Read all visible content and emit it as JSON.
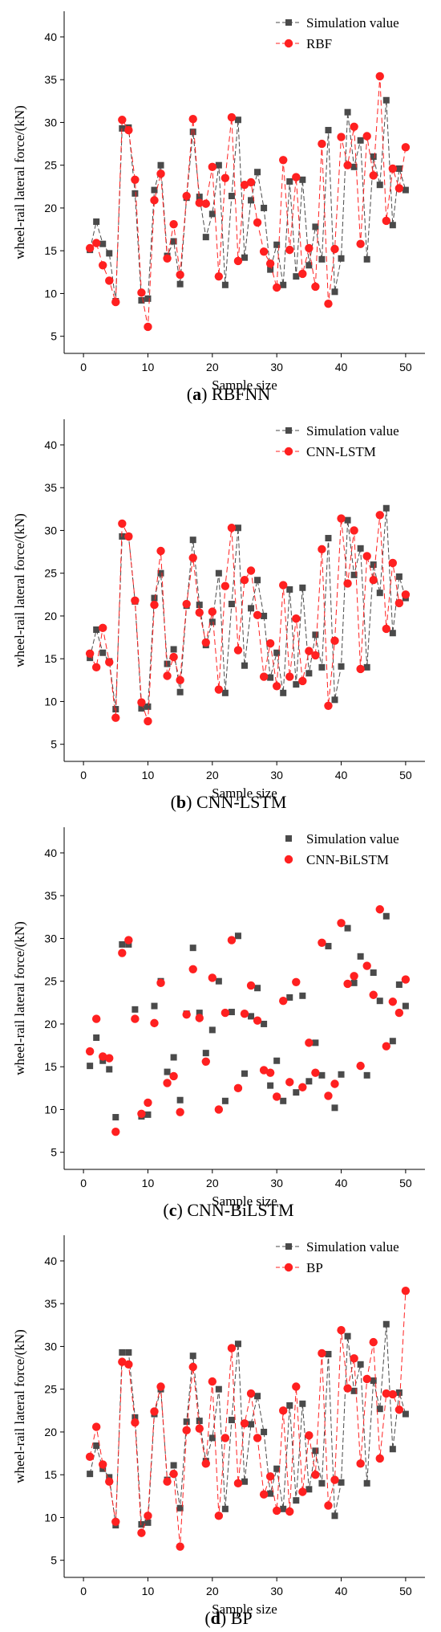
{
  "chart_data": [
    {
      "type": "line",
      "caption": {
        "letter": "a",
        "text": "RBFNN"
      },
      "xlabel": "Sample size",
      "ylabel": "wheel-rail lateral force/(kN)",
      "xlim": [
        -3,
        53
      ],
      "ylim": [
        3,
        43
      ],
      "xticks": [
        0,
        10,
        20,
        30,
        40,
        50
      ],
      "yticks": [
        5,
        10,
        15,
        20,
        25,
        30,
        35,
        40
      ],
      "series": [
        {
          "name": "Simulation value",
          "color": "#4a4a4a",
          "marker": "square",
          "x": [
            1,
            2,
            3,
            4,
            5,
            6,
            7,
            8,
            9,
            10,
            11,
            12,
            13,
            14,
            15,
            16,
            17,
            18,
            19,
            20,
            21,
            22,
            23,
            24,
            25,
            26,
            27,
            28,
            29,
            30,
            31,
            32,
            33,
            34,
            35,
            36,
            37,
            38,
            39,
            40,
            41,
            42,
            43,
            44,
            45,
            46,
            47,
            48,
            49,
            50
          ],
          "y": [
            15.1,
            18.4,
            15.8,
            14.7,
            9.1,
            29.3,
            29.4,
            21.7,
            9.2,
            9.4,
            22.1,
            25.0,
            14.4,
            16.1,
            11.1,
            21.2,
            28.9,
            21.3,
            16.6,
            19.3,
            25.0,
            11.0,
            21.4,
            30.3,
            14.2,
            20.9,
            24.2,
            20.0,
            12.8,
            15.7,
            11.0,
            23.1,
            12.0,
            23.3,
            13.3,
            17.8,
            14.0,
            29.1,
            10.2,
            14.1,
            31.2,
            24.8,
            27.9,
            14.0,
            26.0,
            22.7,
            32.6,
            18.0,
            24.6,
            22.1
          ]
        },
        {
          "name": "RBF",
          "color": "#ff2020",
          "marker": "circle",
          "x": [
            1,
            2,
            3,
            4,
            5,
            6,
            7,
            8,
            9,
            10,
            11,
            12,
            13,
            14,
            15,
            16,
            17,
            18,
            19,
            20,
            21,
            22,
            23,
            24,
            25,
            26,
            27,
            28,
            29,
            30,
            31,
            32,
            33,
            34,
            35,
            36,
            37,
            38,
            39,
            40,
            41,
            42,
            43,
            44,
            45,
            46,
            47,
            48,
            49,
            50
          ],
          "y": [
            15.3,
            15.9,
            13.3,
            11.5,
            9.0,
            30.3,
            29.1,
            23.3,
            10.1,
            6.1,
            20.9,
            24.0,
            14.1,
            18.1,
            12.2,
            21.4,
            30.4,
            20.6,
            20.5,
            24.8,
            12.0,
            23.5,
            30.6,
            13.8,
            22.7,
            23.0,
            18.3,
            14.9,
            13.5,
            10.7,
            25.6,
            15.1,
            23.6,
            12.3,
            15.3,
            10.8,
            27.5,
            8.8,
            15.2,
            28.3,
            25.0,
            29.5,
            15.8,
            28.4,
            23.8,
            35.4,
            18.5,
            24.6,
            22.3,
            27.1
          ]
        }
      ]
    },
    {
      "type": "line",
      "caption": {
        "letter": "b",
        "text": "CNN-LSTM"
      },
      "xlabel": "Sample size",
      "ylabel": "wheel-rail lateral force/(kN)",
      "xlim": [
        -3,
        53
      ],
      "ylim": [
        3,
        43
      ],
      "xticks": [
        0,
        10,
        20,
        30,
        40,
        50
      ],
      "yticks": [
        5,
        10,
        15,
        20,
        25,
        30,
        35,
        40
      ],
      "series": [
        {
          "name": "Simulation value",
          "color": "#4a4a4a",
          "marker": "square",
          "x": [
            1,
            2,
            3,
            4,
            5,
            6,
            7,
            8,
            9,
            10,
            11,
            12,
            13,
            14,
            15,
            16,
            17,
            18,
            19,
            20,
            21,
            22,
            23,
            24,
            25,
            26,
            27,
            28,
            29,
            30,
            31,
            32,
            33,
            34,
            35,
            36,
            37,
            38,
            39,
            40,
            41,
            42,
            43,
            44,
            45,
            46,
            47,
            48,
            49,
            50
          ],
          "y": [
            15.1,
            18.4,
            15.7,
            14.7,
            9.1,
            29.3,
            29.3,
            21.7,
            9.2,
            9.4,
            22.1,
            25.0,
            14.4,
            16.1,
            11.1,
            21.2,
            28.9,
            21.3,
            16.6,
            19.3,
            25.0,
            11.0,
            21.4,
            30.3,
            14.2,
            20.9,
            24.2,
            20.0,
            12.8,
            15.7,
            11.0,
            23.1,
            12.0,
            23.3,
            13.3,
            17.8,
            14.0,
            29.1,
            10.2,
            14.1,
            31.2,
            24.8,
            27.9,
            14.0,
            26.0,
            22.7,
            32.6,
            18.0,
            24.6,
            22.1
          ]
        },
        {
          "name": "CNN-LSTM",
          "color": "#ff2020",
          "marker": "circle",
          "x": [
            1,
            2,
            3,
            4,
            5,
            6,
            7,
            8,
            9,
            10,
            11,
            12,
            13,
            14,
            15,
            16,
            17,
            18,
            19,
            20,
            21,
            22,
            23,
            24,
            25,
            26,
            27,
            28,
            29,
            30,
            31,
            32,
            33,
            34,
            35,
            36,
            37,
            38,
            39,
            40,
            41,
            42,
            43,
            44,
            45,
            46,
            47,
            48,
            49,
            50
          ],
          "y": [
            15.6,
            14.0,
            18.6,
            14.6,
            8.1,
            30.8,
            29.3,
            21.8,
            9.9,
            7.7,
            21.3,
            27.6,
            13.0,
            15.2,
            12.5,
            21.4,
            26.8,
            20.4,
            16.9,
            20.5,
            11.4,
            23.5,
            30.3,
            16.0,
            24.2,
            25.3,
            20.1,
            12.9,
            16.8,
            11.8,
            23.6,
            12.9,
            19.7,
            12.4,
            15.9,
            15.4,
            27.8,
            9.5,
            17.1,
            31.4,
            23.8,
            30.0,
            13.8,
            27.0,
            24.2,
            31.8,
            18.5,
            26.2,
            21.5,
            22.5
          ]
        }
      ]
    },
    {
      "type": "scatter",
      "caption": {
        "letter": "c",
        "text": "CNN-BiLSTM"
      },
      "xlabel": "Sample size",
      "ylabel": "wheel-rail lateral force/(kN)",
      "xlim": [
        -3,
        53
      ],
      "ylim": [
        3,
        43
      ],
      "xticks": [
        0,
        10,
        20,
        30,
        40,
        50
      ],
      "yticks": [
        5,
        10,
        15,
        20,
        25,
        30,
        35,
        40
      ],
      "series": [
        {
          "name": "Simulation value",
          "color": "#4a4a4a",
          "marker": "square",
          "x": [
            1,
            2,
            3,
            4,
            5,
            6,
            7,
            8,
            9,
            10,
            11,
            12,
            13,
            14,
            15,
            16,
            17,
            18,
            19,
            20,
            21,
            22,
            23,
            24,
            25,
            26,
            27,
            28,
            29,
            30,
            31,
            32,
            33,
            34,
            35,
            36,
            37,
            38,
            39,
            40,
            41,
            42,
            43,
            44,
            45,
            46,
            47,
            48,
            49,
            50
          ],
          "y": [
            15.1,
            18.4,
            15.7,
            14.7,
            9.1,
            29.3,
            29.3,
            21.7,
            9.2,
            9.4,
            22.1,
            25.0,
            14.4,
            16.1,
            11.1,
            21.2,
            28.9,
            21.3,
            16.6,
            19.3,
            25.0,
            11.0,
            21.4,
            30.3,
            14.2,
            20.9,
            24.2,
            20.0,
            12.8,
            15.7,
            11.0,
            23.1,
            12.0,
            23.3,
            13.3,
            17.8,
            14.0,
            29.1,
            10.2,
            14.1,
            31.2,
            24.8,
            27.9,
            14.0,
            26.0,
            22.7,
            32.6,
            18.0,
            24.6,
            22.1
          ]
        },
        {
          "name": "CNN-BiLSTM",
          "color": "#ff2020",
          "marker": "circle",
          "x": [
            1,
            2,
            3,
            4,
            5,
            6,
            7,
            8,
            9,
            10,
            11,
            12,
            13,
            14,
            15,
            16,
            17,
            18,
            19,
            20,
            21,
            22,
            23,
            24,
            25,
            26,
            27,
            28,
            29,
            30,
            31,
            32,
            33,
            34,
            35,
            36,
            37,
            38,
            39,
            40,
            41,
            42,
            43,
            44,
            45,
            46,
            47,
            48,
            49,
            50
          ],
          "y": [
            16.8,
            20.6,
            16.2,
            16.0,
            7.4,
            28.3,
            29.8,
            20.6,
            9.5,
            10.8,
            20.1,
            24.8,
            13.1,
            13.9,
            9.7,
            21.1,
            26.4,
            20.7,
            15.6,
            25.4,
            10.0,
            21.3,
            29.8,
            12.5,
            21.2,
            24.5,
            20.4,
            14.6,
            14.3,
            11.5,
            22.7,
            13.2,
            24.9,
            12.6,
            17.8,
            14.3,
            29.5,
            11.6,
            13.0,
            31.8,
            24.7,
            25.6,
            15.1,
            26.8,
            23.4,
            33.4,
            17.4,
            22.6,
            21.3,
            25.2
          ]
        }
      ]
    },
    {
      "type": "line",
      "caption": {
        "letter": "d",
        "text": "BP"
      },
      "xlabel": "Sample size",
      "ylabel": "wheel-rail lateral force/(kN)",
      "xlim": [
        -3,
        53
      ],
      "ylim": [
        3,
        43
      ],
      "xticks": [
        0,
        10,
        20,
        30,
        40,
        50
      ],
      "yticks": [
        5,
        10,
        15,
        20,
        25,
        30,
        35,
        40
      ],
      "series": [
        {
          "name": "Simulation value",
          "color": "#4a4a4a",
          "marker": "square",
          "x": [
            1,
            2,
            3,
            4,
            5,
            6,
            7,
            8,
            9,
            10,
            11,
            12,
            13,
            14,
            15,
            16,
            17,
            18,
            19,
            20,
            21,
            22,
            23,
            24,
            25,
            26,
            27,
            28,
            29,
            30,
            31,
            32,
            33,
            34,
            35,
            36,
            37,
            38,
            39,
            40,
            41,
            42,
            43,
            44,
            45,
            46,
            47,
            48,
            49,
            50
          ],
          "y": [
            15.1,
            18.4,
            15.7,
            14.7,
            9.1,
            29.3,
            29.3,
            21.7,
            9.2,
            9.4,
            22.1,
            25.0,
            14.4,
            16.1,
            11.1,
            21.2,
            28.9,
            21.3,
            16.6,
            19.3,
            25.0,
            11.0,
            21.4,
            30.3,
            14.2,
            20.9,
            24.2,
            20.0,
            12.8,
            15.7,
            11.0,
            23.1,
            12.0,
            23.3,
            13.3,
            17.8,
            14.0,
            29.1,
            10.2,
            14.1,
            31.2,
            24.8,
            27.9,
            14.0,
            26.0,
            22.7,
            32.6,
            18.0,
            24.6,
            22.1
          ]
        },
        {
          "name": "BP",
          "color": "#ff2020",
          "marker": "circle",
          "x": [
            1,
            2,
            3,
            4,
            5,
            6,
            7,
            8,
            9,
            10,
            11,
            12,
            13,
            14,
            15,
            16,
            17,
            18,
            19,
            20,
            21,
            22,
            23,
            24,
            25,
            26,
            27,
            28,
            29,
            30,
            31,
            32,
            33,
            34,
            35,
            36,
            37,
            38,
            39,
            40,
            41,
            42,
            43,
            44,
            45,
            46,
            47,
            48,
            49,
            50
          ],
          "y": [
            17.1,
            20.6,
            16.2,
            14.2,
            9.5,
            28.2,
            27.9,
            21.1,
            8.2,
            10.2,
            22.4,
            25.3,
            14.2,
            15.1,
            6.6,
            20.2,
            27.6,
            20.4,
            16.3,
            25.9,
            10.2,
            19.3,
            29.8,
            14.0,
            21.0,
            24.5,
            19.3,
            12.7,
            14.8,
            10.8,
            22.5,
            10.7,
            25.3,
            13.0,
            19.6,
            15.0,
            29.2,
            11.4,
            14.4,
            31.9,
            25.1,
            28.6,
            16.3,
            26.2,
            30.5,
            16.9,
            24.5,
            24.4,
            22.6,
            36.5
          ]
        }
      ]
    }
  ]
}
